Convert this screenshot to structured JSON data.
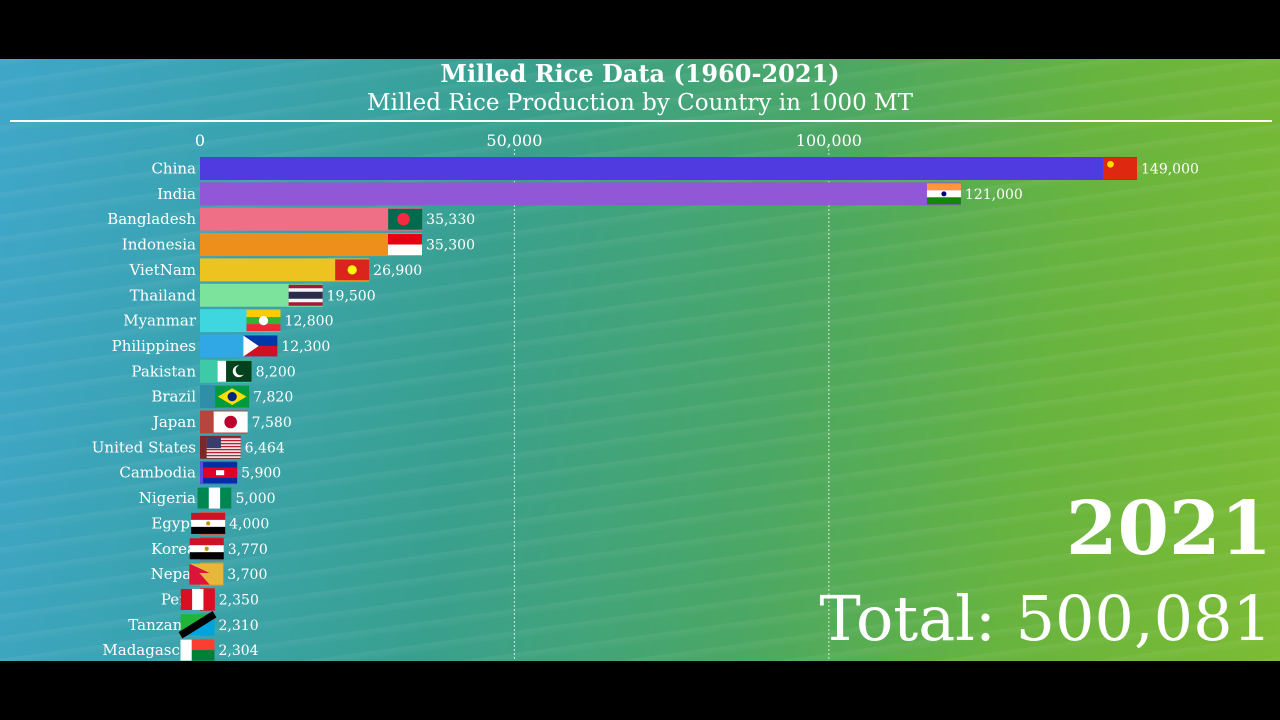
{
  "title": "Milled Rice Data (1960-2021)",
  "subtitle": "Milled Rice Production by Country in 1000 MT",
  "year": "2021",
  "total_label": "Total:",
  "total_value": "500,081",
  "chart_data": {
    "type": "bar",
    "orientation": "horizontal",
    "title": "Milled Rice Data (1960-2021)",
    "subtitle": "Milled Rice Production by Country in 1000 MT",
    "xlim": [
      0,
      149000
    ],
    "xticks": [
      0,
      50000,
      100000
    ],
    "xtick_labels": [
      "0",
      "50,000",
      "100,000"
    ],
    "grid": true,
    "categories": [
      "China",
      "India",
      "Bangladesh",
      "Indonesia",
      "VietNam",
      "Thailand",
      "Myanmar",
      "Philippines",
      "Pakistan",
      "Brazil",
      "Japan",
      "United States",
      "Cambodia",
      "Nigeria",
      "Egypt",
      "Korea",
      "Nepal",
      "Peru",
      "Tanzania",
      "Madagascar"
    ],
    "values": [
      149000,
      121000,
      35330,
      35300,
      26900,
      19500,
      12800,
      12300,
      8200,
      7820,
      7580,
      6464,
      5900,
      5000,
      4000,
      3770,
      3700,
      2350,
      2310,
      2304
    ],
    "value_labels": [
      "149,000",
      "121,000",
      "35,330",
      "35,300",
      "26,900",
      "19,500",
      "12,800",
      "12,300",
      "8,200",
      "7,820",
      "7,580",
      "6,464",
      "5,900",
      "5,000",
      "4,000",
      "3,770",
      "3,700",
      "2,350",
      "2,310",
      "2,304"
    ],
    "colors": [
      "#4f3be0",
      "#9257d6",
      "#ee6f86",
      "#ee8f1c",
      "#edc320",
      "#7ce39c",
      "#3ed7df",
      "#30a8e6",
      "#3ec9a8",
      "#2f8fa8",
      "#b8453d",
      "#7d2828",
      "#5c4ad8",
      "#2f9db0",
      "#c2614a",
      "#c24a4a",
      "#d99a2a",
      "#b83a3a",
      "#2fa0b0",
      "#2f9db0"
    ]
  },
  "flags": [
    "china",
    "india",
    "bangladesh",
    "indonesia",
    "vietnam",
    "thailand",
    "myanmar",
    "philippines",
    "pakistan",
    "brazil",
    "japan",
    "usa",
    "cambodia",
    "nigeria",
    "egypt",
    "korea",
    "nepal",
    "peru",
    "tanzania",
    "madagascar"
  ]
}
